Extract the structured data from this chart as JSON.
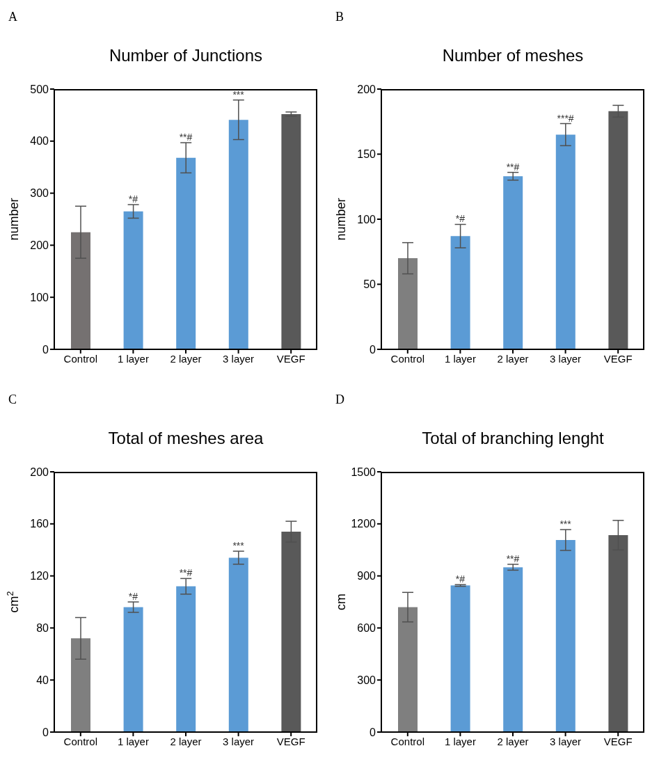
{
  "chart_data": [
    {
      "type": "bar",
      "title": "Number of Junctions",
      "ylabel": "number",
      "categories": [
        "Control",
        "1 layer",
        "2 layer",
        "3 layer",
        "VEGF"
      ],
      "values": [
        225,
        265,
        368,
        441,
        452
      ],
      "errors": [
        50,
        13,
        29,
        38,
        4
      ],
      "colors": [
        "#757171",
        "#5b9bd5",
        "#5b9bd5",
        "#5b9bd5",
        "#595959"
      ],
      "ylim": [
        0,
        500
      ],
      "yticks": [
        0,
        100,
        200,
        300,
        400,
        500
      ],
      "grid": false,
      "legend": false,
      "annotations": [
        "A",
        {
          "text": "*#",
          "x": "1 layer",
          "y": 278
        },
        {
          "text": "**#",
          "x": "2 layer",
          "y": 397
        },
        {
          "text": "***",
          "x": "3 layer",
          "y": 479
        }
      ]
    },
    {
      "type": "bar",
      "title": "Number of meshes",
      "ylabel": "number",
      "categories": [
        "Control",
        "1 layer",
        "2 layer",
        "3 layer",
        "VEGF"
      ],
      "values": [
        70,
        87,
        133,
        165,
        183
      ],
      "errors": [
        12,
        9,
        3,
        8.5,
        4.5
      ],
      "colors": [
        "#7f7f7f",
        "#5b9bd5",
        "#5b9bd5",
        "#5b9bd5",
        "#595959"
      ],
      "ylim": [
        0,
        200
      ],
      "yticks": [
        0,
        50,
        100,
        150,
        200
      ],
      "grid": false,
      "legend": false,
      "annotations": [
        "B",
        {
          "text": "*#",
          "x": "1 layer",
          "y": 96
        },
        {
          "text": "**#",
          "x": "2 layer",
          "y": 136
        },
        {
          "text": "***#",
          "x": "3 layer",
          "y": 173.5
        }
      ]
    },
    {
      "type": "bar",
      "title": "Total of meshes area",
      "ylabel": "cm$^{2}$",
      "categories": [
        "Control",
        "1 layer",
        "2 layer",
        "3 layer",
        "VEGF"
      ],
      "values": [
        72,
        96,
        112,
        134,
        154
      ],
      "errors": [
        16,
        4,
        6,
        5,
        8
      ],
      "colors": [
        "#7f7f7f",
        "#5b9bd5",
        "#5b9bd5",
        "#5b9bd5",
        "#595959"
      ],
      "ylim": [
        0,
        200
      ],
      "yticks": [
        0,
        40,
        80,
        120,
        160,
        200
      ],
      "grid": false,
      "legend": false,
      "annotations": [
        "C",
        {
          "text": "*#",
          "x": "1 layer",
          "y": 100
        },
        {
          "text": "**#",
          "x": "2 layer",
          "y": 118
        },
        {
          "text": "***",
          "x": "3 layer",
          "y": 139
        }
      ]
    },
    {
      "type": "bar",
      "title": "Total of branching lenght",
      "ylabel": "cm",
      "categories": [
        "Control",
        "1 layer",
        "2 layer",
        "3 layer",
        "VEGF"
      ],
      "values": [
        720,
        845,
        950,
        1107,
        1135
      ],
      "errors": [
        85,
        5,
        17,
        60,
        85
      ],
      "colors": [
        "#7f7f7f",
        "#5b9bd5",
        "#5b9bd5",
        "#5b9bd5",
        "#595959"
      ],
      "ylim": [
        0,
        1500
      ],
      "yticks": [
        0,
        300,
        600,
        900,
        1200,
        1500
      ],
      "grid": false,
      "legend": false,
      "annotations": [
        "D",
        {
          "text": "*#",
          "x": "1 layer",
          "y": 850
        },
        {
          "text": "**#",
          "x": "2 layer",
          "y": 967
        },
        {
          "text": "***",
          "x": "3 layer",
          "y": 1167
        }
      ]
    }
  ]
}
